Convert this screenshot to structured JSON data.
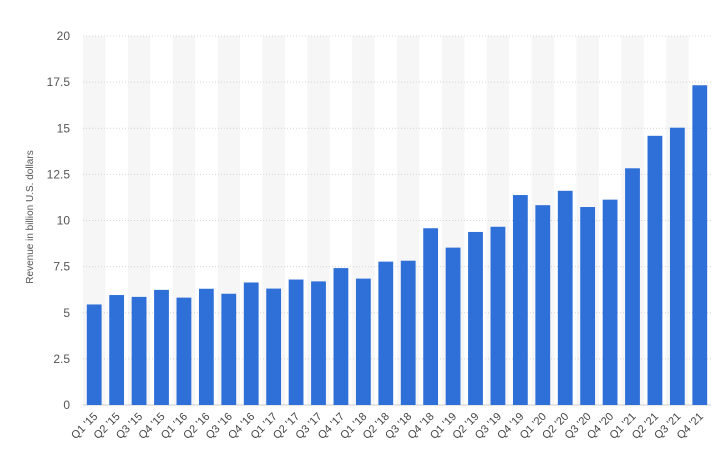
{
  "chart_data": {
    "type": "bar",
    "title": "",
    "xlabel": "",
    "ylabel": "Revenue in billion U.S. dollars",
    "ylim": [
      0,
      20
    ],
    "yticks": [
      "0",
      "2.5",
      "5",
      "7.5",
      "10",
      "12.5",
      "15",
      "17.5",
      "20"
    ],
    "grid": true,
    "bar_color": "#2e6fd8",
    "categories": [
      "Q1 '15",
      "Q2 '15",
      "Q3 '15",
      "Q4 '15",
      "Q1 '16",
      "Q2 '16",
      "Q3 '16",
      "Q4 '16",
      "Q1 '17",
      "Q2 '17",
      "Q3 '17",
      "Q4 '17",
      "Q1 '18",
      "Q2 '18",
      "Q3 '18",
      "Q4 '18",
      "Q1 '19",
      "Q2 '19",
      "Q3 '19",
      "Q4 '19",
      "Q1 '20",
      "Q2 '20",
      "Q3 '20",
      "Q4 '20",
      "Q1 '21",
      "Q2 '21",
      "Q3 '21",
      "Q4 '21"
    ],
    "values": [
      5.45,
      5.96,
      5.86,
      6.24,
      5.82,
      6.3,
      6.03,
      6.64,
      6.31,
      6.8,
      6.7,
      7.42,
      6.85,
      7.77,
      7.82,
      9.58,
      8.53,
      9.38,
      9.66,
      11.38,
      10.83,
      11.61,
      10.73,
      11.13,
      12.83,
      14.59,
      15.03,
      17.33
    ]
  }
}
